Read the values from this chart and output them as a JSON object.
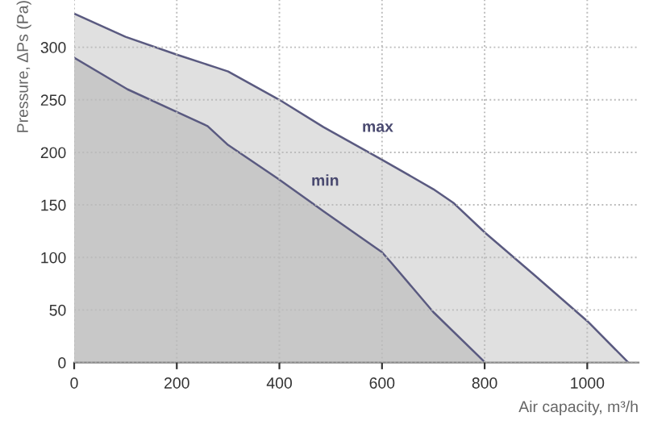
{
  "chart_data": {
    "type": "area",
    "xlabel": "Air capacity, m³/h",
    "ylabel": "Pressure, ΔPs (Pa)",
    "xlim": [
      0,
      1100
    ],
    "ylim": [
      0,
      345
    ],
    "xticks": [
      0,
      200,
      400,
      600,
      800,
      1000
    ],
    "yticks": [
      0,
      50,
      100,
      150,
      200,
      250,
      300
    ],
    "grid": true,
    "series": [
      {
        "name": "max",
        "color": "#e0e0e0",
        "x": [
          0,
          100,
          200,
          275,
          300,
          400,
          486,
          600,
          700,
          739,
          802,
          900,
          1001,
          1080
        ],
        "values": [
          332,
          310,
          293,
          281,
          277,
          250,
          224,
          193,
          165,
          152,
          123,
          82,
          39,
          0
        ]
      },
      {
        "name": "min",
        "color": "#c8c8c8",
        "x": [
          0,
          104,
          202,
          260,
          300,
          397,
          486,
          600,
          618,
          700,
          801
        ],
        "values": [
          290,
          260,
          238,
          225,
          207,
          175,
          144,
          105,
          95,
          48,
          0
        ]
      }
    ]
  }
}
